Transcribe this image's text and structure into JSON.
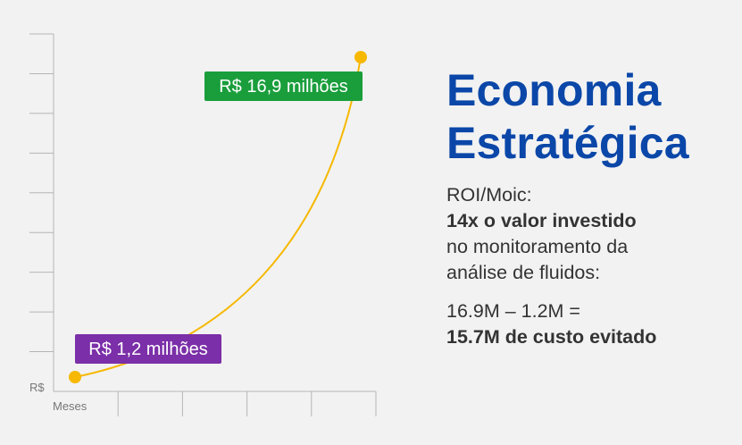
{
  "chart_data": {
    "type": "line",
    "xlabel": "Meses",
    "ylabel": "R$",
    "series": [
      {
        "values": [
          1.2,
          16.9
        ],
        "color": "#f6b800"
      }
    ],
    "annotations": [
      {
        "text": "R$ 16,9 milhões",
        "value": 16.9,
        "color": "#1a9e3c"
      },
      {
        "text": "R$ 1,2 milhões",
        "value": 1.2,
        "color": "#7b2fa8"
      }
    ],
    "grid": false,
    "x_tick_count": 5,
    "y_tick_count": 9
  },
  "panel": {
    "title_line1": "Economia",
    "title_line2": "Estratégica",
    "roi_label": "ROI/Moic:",
    "roi_value": "14x o valor investido",
    "roi_desc1": "no monitoramento da",
    "roi_desc2": "análise de fluidos:",
    "calc": "16.9M – 1.2M =",
    "result": "15.7M de custo evitado"
  },
  "colors": {
    "accent": "#0b47a8",
    "curve": "#f6b800",
    "label_high": "#1a9e3c",
    "label_low": "#7b2fa8"
  }
}
